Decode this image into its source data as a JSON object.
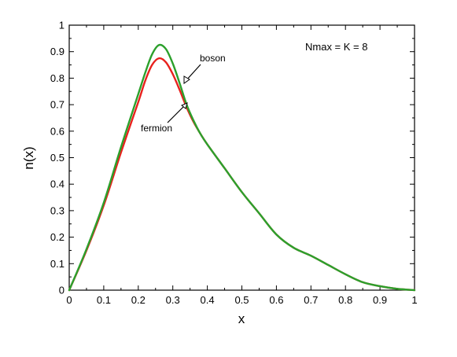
{
  "chart_data": {
    "type": "line",
    "xlabel": "x",
    "ylabel": "n(x)",
    "xlim": [
      0,
      1
    ],
    "ylim": [
      0,
      1
    ],
    "x_ticks": [
      "0",
      "0.1",
      "0.2",
      "0.3",
      "0.4",
      "0.5",
      "0.6",
      "0.7",
      "0.8",
      "0.9",
      "1"
    ],
    "y_ticks": [
      "0",
      "0.1",
      "0.2",
      "0.3",
      "0.4",
      "0.5",
      "0.6",
      "0.7",
      "0.8",
      "0.9",
      "1"
    ],
    "grid": false,
    "annotations": {
      "params": "Nmax = K = 8",
      "boson": "boson",
      "fermion": "fermion"
    },
    "series": [
      {
        "name": "fermion",
        "color": "#e8211d",
        "x": [
          0,
          0.05,
          0.1,
          0.15,
          0.2,
          0.22,
          0.24,
          0.26,
          0.28,
          0.3,
          0.32,
          0.34,
          0.36,
          0.38,
          0.4,
          0.45,
          0.5,
          0.55,
          0.6,
          0.65,
          0.7,
          0.75,
          0.8,
          0.85,
          0.9,
          0.95,
          1.0
        ],
        "y": [
          0,
          0.15,
          0.32,
          0.52,
          0.71,
          0.79,
          0.85,
          0.875,
          0.86,
          0.815,
          0.755,
          0.69,
          0.635,
          0.59,
          0.55,
          0.46,
          0.37,
          0.29,
          0.21,
          0.16,
          0.13,
          0.095,
          0.06,
          0.03,
          0.015,
          0.005,
          0
        ]
      },
      {
        "name": "boson",
        "color": "#2ca02c",
        "x": [
          0,
          0.05,
          0.1,
          0.15,
          0.2,
          0.22,
          0.24,
          0.26,
          0.28,
          0.3,
          0.32,
          0.34,
          0.36,
          0.38,
          0.4,
          0.45,
          0.5,
          0.55,
          0.6,
          0.65,
          0.7,
          0.75,
          0.8,
          0.85,
          0.9,
          0.95,
          1.0
        ],
        "y": [
          0,
          0.155,
          0.33,
          0.54,
          0.74,
          0.82,
          0.89,
          0.925,
          0.91,
          0.855,
          0.78,
          0.7,
          0.64,
          0.59,
          0.55,
          0.46,
          0.37,
          0.29,
          0.21,
          0.16,
          0.13,
          0.095,
          0.06,
          0.03,
          0.015,
          0.005,
          0
        ]
      }
    ]
  }
}
